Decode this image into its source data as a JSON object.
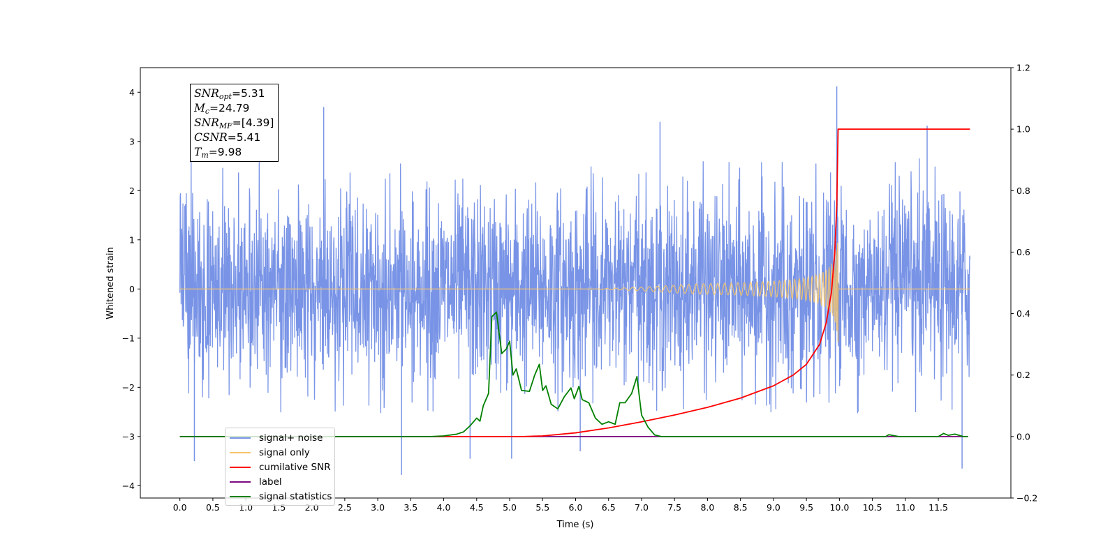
{
  "chart_data": {
    "type": "line",
    "title": "",
    "xlabel": "Time (s)",
    "ylabel": "Whitened strain",
    "xlim": [
      -0.6,
      12.6
    ],
    "ylim": [
      -4.25,
      4.5
    ],
    "y2lim": [
      -0.2,
      1.2
    ],
    "x_ticks": [
      "0.0",
      "0.5",
      "1.0",
      "1.5",
      "2.0",
      "2.5",
      "3.0",
      "3.5",
      "4.0",
      "4.5",
      "5.0",
      "5.5",
      "6.0",
      "6.5",
      "7.0",
      "7.5",
      "8.0",
      "8.5",
      "9.0",
      "9.5",
      "10.0",
      "10.5",
      "11.0",
      "11.5"
    ],
    "y_ticks": [
      "−4",
      "−3",
      "−2",
      "−1",
      "0",
      "1",
      "2",
      "3",
      "4"
    ],
    "y2_ticks": [
      "−0.2",
      "0.0",
      "0.2",
      "0.4",
      "0.6",
      "0.8",
      "1.0",
      "1.2"
    ],
    "grid": false,
    "legend_position": "lower-left",
    "annotation": {
      "snr_opt": "5.31",
      "mc": "24.79",
      "snr_mf": "[4.39]",
      "csnr": "5.41",
      "tm": "9.98"
    },
    "series": [
      {
        "name": "signal+ noise",
        "color": "#7994e6",
        "axis": "left",
        "style": "dense noise band about 0, mostly within [-2.5, 2.7]",
        "spikes": [
          {
            "x": 0.22,
            "y": -3.5
          },
          {
            "x": 2.18,
            "y": 3.7
          },
          {
            "x": 3.36,
            "y": -3.78
          },
          {
            "x": 4.4,
            "y": -3.45
          },
          {
            "x": 5.03,
            "y": -3.45
          },
          {
            "x": 6.07,
            "y": -3.3
          },
          {
            "x": 7.28,
            "y": 3.4
          },
          {
            "x": 9.96,
            "y": 4.12
          },
          {
            "x": 11.33,
            "y": 3.32
          },
          {
            "x": 11.86,
            "y": -3.65
          }
        ]
      },
      {
        "name": "signal only",
        "color": "#f6c46b",
        "axis": "left",
        "style": "chirp starting near 6.4 s, amplitude growing to ~1.05 at 9.98 s, zero after merger"
      },
      {
        "name": "cumilative SNR",
        "color": "#ff0000",
        "axis": "right",
        "points": [
          [
            0.0,
            0.0
          ],
          [
            5.2,
            0.0
          ],
          [
            5.5,
            0.002
          ],
          [
            6.0,
            0.012
          ],
          [
            6.5,
            0.028
          ],
          [
            7.0,
            0.048
          ],
          [
            7.5,
            0.07
          ],
          [
            8.0,
            0.095
          ],
          [
            8.5,
            0.125
          ],
          [
            9.0,
            0.165
          ],
          [
            9.3,
            0.2
          ],
          [
            9.5,
            0.235
          ],
          [
            9.7,
            0.3
          ],
          [
            9.8,
            0.37
          ],
          [
            9.88,
            0.47
          ],
          [
            9.93,
            0.6
          ],
          [
            9.96,
            0.75
          ],
          [
            9.98,
            1.0
          ],
          [
            11.98,
            1.0
          ]
        ]
      },
      {
        "name": "label",
        "color": "#7b0a7e",
        "axis": "right",
        "points": [
          [
            0.0,
            0.0
          ],
          [
            11.95,
            0.0
          ]
        ]
      },
      {
        "name": "signal statistics",
        "color": "#008000",
        "axis": "right",
        "points": [
          [
            0.0,
            0.0
          ],
          [
            3.8,
            0.0
          ],
          [
            4.0,
            0.002
          ],
          [
            4.2,
            0.008
          ],
          [
            4.3,
            0.015
          ],
          [
            4.4,
            0.035
          ],
          [
            4.5,
            0.06
          ],
          [
            4.55,
            0.05
          ],
          [
            4.6,
            0.1
          ],
          [
            4.68,
            0.14
          ],
          [
            4.73,
            0.39
          ],
          [
            4.8,
            0.405
          ],
          [
            4.88,
            0.27
          ],
          [
            4.95,
            0.285
          ],
          [
            5.0,
            0.31
          ],
          [
            5.05,
            0.2
          ],
          [
            5.1,
            0.22
          ],
          [
            5.18,
            0.15
          ],
          [
            5.3,
            0.147
          ],
          [
            5.38,
            0.2
          ],
          [
            5.45,
            0.235
          ],
          [
            5.5,
            0.15
          ],
          [
            5.55,
            0.165
          ],
          [
            5.63,
            0.105
          ],
          [
            5.73,
            0.09
          ],
          [
            5.83,
            0.13
          ],
          [
            5.93,
            0.158
          ],
          [
            5.98,
            0.123
          ],
          [
            6.05,
            0.163
          ],
          [
            6.1,
            0.12
          ],
          [
            6.2,
            0.11
          ],
          [
            6.3,
            0.06
          ],
          [
            6.4,
            0.04
          ],
          [
            6.5,
            0.048
          ],
          [
            6.6,
            0.04
          ],
          [
            6.67,
            0.11
          ],
          [
            6.75,
            0.11
          ],
          [
            6.85,
            0.14
          ],
          [
            6.93,
            0.195
          ],
          [
            7.0,
            0.07
          ],
          [
            7.1,
            0.03
          ],
          [
            7.2,
            0.005
          ],
          [
            7.3,
            0.0
          ],
          [
            10.7,
            0.0
          ],
          [
            10.75,
            0.006
          ],
          [
            10.9,
            0.0
          ],
          [
            11.5,
            0.0
          ],
          [
            11.58,
            0.01
          ],
          [
            11.65,
            0.004
          ],
          [
            11.75,
            0.008
          ],
          [
            11.88,
            0.0
          ],
          [
            11.95,
            0.0
          ]
        ]
      }
    ]
  }
}
